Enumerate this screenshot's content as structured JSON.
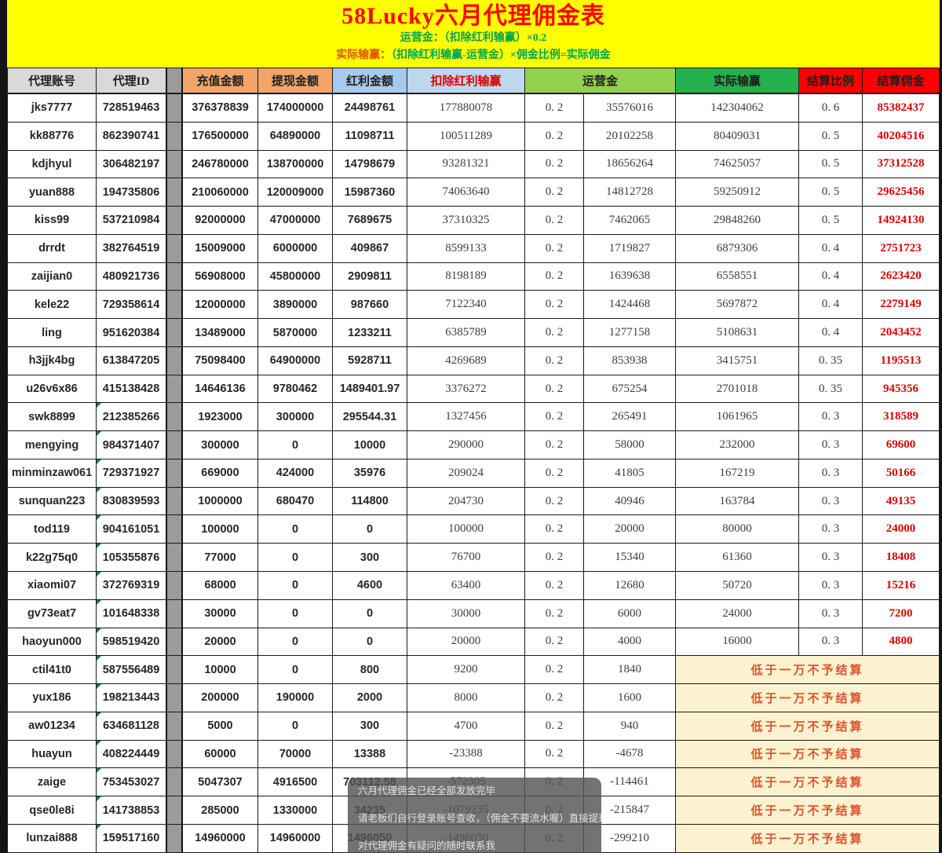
{
  "banner": {
    "title": "58Lucky六月代理佣金表",
    "formula_line1": "运营金：（扣除红利输赢）×0.2",
    "formula_line2_prefix": "实际输赢：",
    "formula_line2_rest": "（扣除红利输赢-运营金）×佣金比例=实际佣金"
  },
  "table": {
    "headers": {
      "account": "代理账号",
      "id": "代理ID",
      "charge": "充值金额",
      "withdraw": "提现金额",
      "bonus": "红利金额",
      "net": "扣除红利输赢",
      "operating": "运营金",
      "actual": "实际输赢",
      "ratio": "结算比例",
      "commission": "结算佣金"
    },
    "low_note": "低于一万不予结算",
    "rows": [
      {
        "account": "jks7777",
        "id": "728519463",
        "charge": "376378839",
        "withdraw": "174000000",
        "bonus": "24498761",
        "net": "177880078",
        "rate": "0. 2",
        "operating": "35576016",
        "actual": "142304062",
        "ratio": "0. 6",
        "commission": "85382437",
        "low": false,
        "mark": false
      },
      {
        "account": "kk88776",
        "id": "862390741",
        "charge": "176500000",
        "withdraw": "64890000",
        "bonus": "11098711",
        "net": "100511289",
        "rate": "0. 2",
        "operating": "20102258",
        "actual": "80409031",
        "ratio": "0. 5",
        "commission": "40204516",
        "low": false,
        "mark": false
      },
      {
        "account": "kdjhyul",
        "id": "306482197",
        "charge": "246780000",
        "withdraw": "138700000",
        "bonus": "14798679",
        "net": "93281321",
        "rate": "0. 2",
        "operating": "18656264",
        "actual": "74625057",
        "ratio": "0. 5",
        "commission": "37312528",
        "low": false,
        "mark": false
      },
      {
        "account": "yuan888",
        "id": "194735806",
        "charge": "210060000",
        "withdraw": "120009000",
        "bonus": "15987360",
        "net": "74063640",
        "rate": "0. 2",
        "operating": "14812728",
        "actual": "59250912",
        "ratio": "0. 5",
        "commission": "29625456",
        "low": false,
        "mark": false
      },
      {
        "account": "kiss99",
        "id": "537210984",
        "charge": "92000000",
        "withdraw": "47000000",
        "bonus": "7689675",
        "net": "37310325",
        "rate": "0. 2",
        "operating": "7462065",
        "actual": "29848260",
        "ratio": "0. 5",
        "commission": "14924130",
        "low": false,
        "mark": false
      },
      {
        "account": "drrdt",
        "id": "382764519",
        "charge": "15009000",
        "withdraw": "6000000",
        "bonus": "409867",
        "net": "8599133",
        "rate": "0. 2",
        "operating": "1719827",
        "actual": "6879306",
        "ratio": "0. 4",
        "commission": "2751723",
        "low": false,
        "mark": false
      },
      {
        "account": "zaijian0",
        "id": "480921736",
        "charge": "56908000",
        "withdraw": "45800000",
        "bonus": "2909811",
        "net": "8198189",
        "rate": "0. 2",
        "operating": "1639638",
        "actual": "6558551",
        "ratio": "0. 4",
        "commission": "2623420",
        "low": false,
        "mark": false
      },
      {
        "account": "kele22",
        "id": "729358614",
        "charge": "12000000",
        "withdraw": "3890000",
        "bonus": "987660",
        "net": "7122340",
        "rate": "0. 2",
        "operating": "1424468",
        "actual": "5697872",
        "ratio": "0. 4",
        "commission": "2279149",
        "low": false,
        "mark": false
      },
      {
        "account": "ling",
        "id": "951620384",
        "charge": "13489000",
        "withdraw": "5870000",
        "bonus": "1233211",
        "net": "6385789",
        "rate": "0. 2",
        "operating": "1277158",
        "actual": "5108631",
        "ratio": "0. 4",
        "commission": "2043452",
        "low": false,
        "mark": false
      },
      {
        "account": "h3jjk4bg",
        "id": "613847205",
        "charge": "75098400",
        "withdraw": "64900000",
        "bonus": "5928711",
        "net": "4269689",
        "rate": "0. 2",
        "operating": "853938",
        "actual": "3415751",
        "ratio": "0. 35",
        "commission": "1195513",
        "low": false,
        "mark": false
      },
      {
        "account": "u26v6x86",
        "id": "415138428",
        "charge": "14646136",
        "withdraw": "9780462",
        "bonus": "1489401.97",
        "net": "3376272",
        "rate": "0. 2",
        "operating": "675254",
        "actual": "2701018",
        "ratio": "0. 35",
        "commission": "945356",
        "low": false,
        "mark": false
      },
      {
        "account": "swk8899",
        "id": "212385266",
        "charge": "1923000",
        "withdraw": "300000",
        "bonus": "295544.31",
        "net": "1327456",
        "rate": "0. 2",
        "operating": "265491",
        "actual": "1061965",
        "ratio": "0. 3",
        "commission": "318589",
        "low": false,
        "mark": true
      },
      {
        "account": "mengying",
        "id": "984371407",
        "charge": "300000",
        "withdraw": "0",
        "bonus": "10000",
        "net": "290000",
        "rate": "0. 2",
        "operating": "58000",
        "actual": "232000",
        "ratio": "0. 3",
        "commission": "69600",
        "low": false,
        "mark": true
      },
      {
        "account": "minminzaw061",
        "id": "729371927",
        "charge": "669000",
        "withdraw": "424000",
        "bonus": "35976",
        "net": "209024",
        "rate": "0. 2",
        "operating": "41805",
        "actual": "167219",
        "ratio": "0. 3",
        "commission": "50166",
        "low": false,
        "mark": true
      },
      {
        "account": "sunquan223",
        "id": "830839593",
        "charge": "1000000",
        "withdraw": "680470",
        "bonus": "114800",
        "net": "204730",
        "rate": "0. 2",
        "operating": "40946",
        "actual": "163784",
        "ratio": "0. 3",
        "commission": "49135",
        "low": false,
        "mark": true
      },
      {
        "account": "tod119",
        "id": "904161051",
        "charge": "100000",
        "withdraw": "0",
        "bonus": "0",
        "net": "100000",
        "rate": "0. 2",
        "operating": "20000",
        "actual": "80000",
        "ratio": "0. 3",
        "commission": "24000",
        "low": false,
        "mark": true
      },
      {
        "account": "k22g75q0",
        "id": "105355876",
        "charge": "77000",
        "withdraw": "0",
        "bonus": "300",
        "net": "76700",
        "rate": "0. 2",
        "operating": "15340",
        "actual": "61360",
        "ratio": "0. 3",
        "commission": "18408",
        "low": false,
        "mark": true
      },
      {
        "account": "xiaomi07",
        "id": "372769319",
        "charge": "68000",
        "withdraw": "0",
        "bonus": "4600",
        "net": "63400",
        "rate": "0. 2",
        "operating": "12680",
        "actual": "50720",
        "ratio": "0. 3",
        "commission": "15216",
        "low": false,
        "mark": true
      },
      {
        "account": "gv73eat7",
        "id": "101648338",
        "charge": "30000",
        "withdraw": "0",
        "bonus": "0",
        "net": "30000",
        "rate": "0. 2",
        "operating": "6000",
        "actual": "24000",
        "ratio": "0. 3",
        "commission": "7200",
        "low": false,
        "mark": true
      },
      {
        "account": "haoyun000",
        "id": "598519420",
        "charge": "20000",
        "withdraw": "0",
        "bonus": "0",
        "net": "20000",
        "rate": "0. 2",
        "operating": "4000",
        "actual": "16000",
        "ratio": "0. 3",
        "commission": "4800",
        "low": false,
        "mark": true
      },
      {
        "account": "ctil41t0",
        "id": "587556489",
        "charge": "10000",
        "withdraw": "0",
        "bonus": "800",
        "net": "9200",
        "rate": "0. 2",
        "operating": "1840",
        "low": true,
        "mark": true
      },
      {
        "account": "yux186",
        "id": "198213443",
        "charge": "200000",
        "withdraw": "190000",
        "bonus": "2000",
        "net": "8000",
        "rate": "0. 2",
        "operating": "1600",
        "low": true,
        "mark": true
      },
      {
        "account": "aw01234",
        "id": "634681128",
        "charge": "5000",
        "withdraw": "0",
        "bonus": "300",
        "net": "4700",
        "rate": "0. 2",
        "operating": "940",
        "low": true,
        "mark": true
      },
      {
        "account": "huayun",
        "id": "408224449",
        "charge": "60000",
        "withdraw": "70000",
        "bonus": "13388",
        "net": "-23388",
        "rate": "0. 2",
        "operating": "-4678",
        "low": true,
        "mark": true
      },
      {
        "account": "zaige",
        "id": "753453027",
        "charge": "5047307",
        "withdraw": "4916500",
        "bonus": "703112.58",
        "net": "-572305",
        "rate": "0. 2",
        "operating": "-114461",
        "low": true,
        "mark": true
      },
      {
        "account": "qse0le8i",
        "id": "141738853",
        "charge": "285000",
        "withdraw": "1330000",
        "bonus": "34235",
        "net": "-1079235",
        "rate": "0. 2",
        "operating": "-215847",
        "low": true,
        "mark": true
      },
      {
        "account": "lunzai888",
        "id": "159517160",
        "charge": "14960000",
        "withdraw": "14960000",
        "bonus": "1496050",
        "net": "-1496050",
        "rate": "0. 2",
        "operating": "-299210",
        "low": true,
        "mark": true
      }
    ]
  },
  "overlay": {
    "lines": [
      "六月代理佣金已经全部发放完毕",
      "请老板们自行登录账号查收，（佣金不要流水喔）直接提现",
      "对代理佣金有疑问的随时联系我"
    ]
  },
  "colors": {
    "banner_bg": "#FFFF00",
    "title_red": "#FF0000",
    "formula_green": "#00A550",
    "formula_accent": "#E05206",
    "header_gray": "#D9D9D9",
    "header_orange": "#F2A469",
    "header_blue_bonus": "#A7C9EA",
    "header_blue_net": "#BDD7EE",
    "header_green_operating": "#92D050",
    "header_green_actual": "#22B14C",
    "header_red": "#FE0000",
    "commission_red": "#DD0000",
    "low_cell_bg": "#FCF2CF",
    "low_cell_text": "#DD5230",
    "overlay_bg": "rgba(84,84,84,0.82)"
  }
}
